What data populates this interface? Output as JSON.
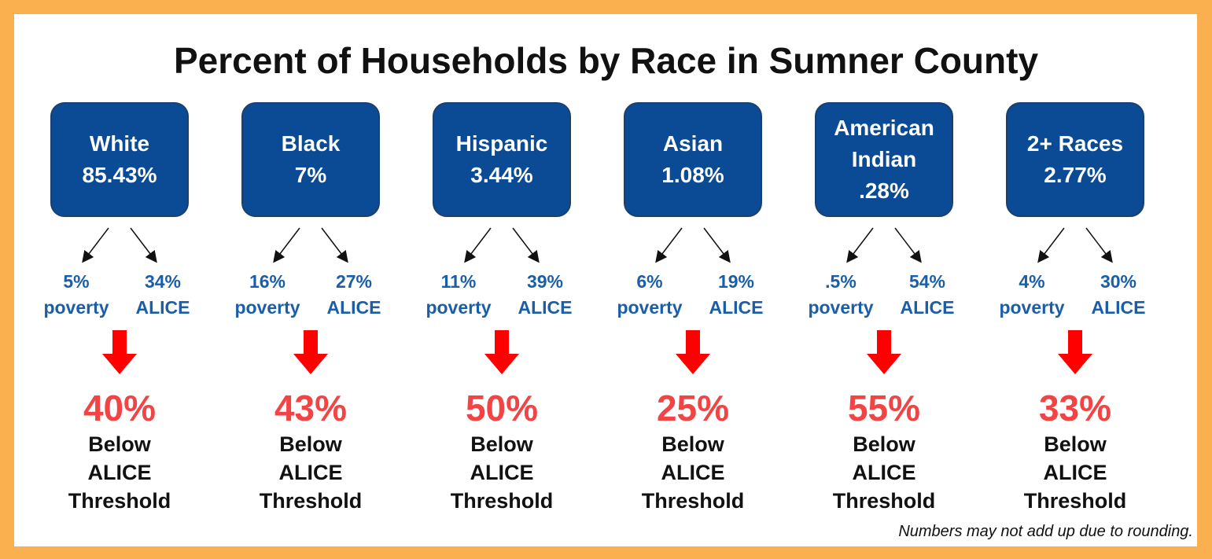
{
  "header": {
    "title": "Percent of Households by Race in Sumner County"
  },
  "labels": {
    "poverty": "poverty",
    "alice": "ALICE",
    "below": [
      "Below",
      "ALICE",
      "Threshold"
    ]
  },
  "groups": [
    {
      "name": "White",
      "share": "85.43%",
      "poverty": "5%",
      "alice": "34%",
      "below": "40%"
    },
    {
      "name": "Black",
      "share": "7%",
      "poverty": "16%",
      "alice": "27%",
      "below": "43%"
    },
    {
      "name": "Hispanic",
      "share": "3.44%",
      "poverty": "11%",
      "alice": "39%",
      "below": "50%"
    },
    {
      "name": "Asian",
      "share": "1.08%",
      "poverty": "6%",
      "alice": "19%",
      "below": "25%"
    },
    {
      "name": "American Indian",
      "share": ".28%",
      "poverty": ".5%",
      "alice": "54%",
      "below": "55%"
    },
    {
      "name": "2+ Races",
      "share": "2.77%",
      "poverty": "4%",
      "alice": "30%",
      "below": "33%"
    }
  ],
  "footnote": "Numbers may not add up due to rounding."
}
